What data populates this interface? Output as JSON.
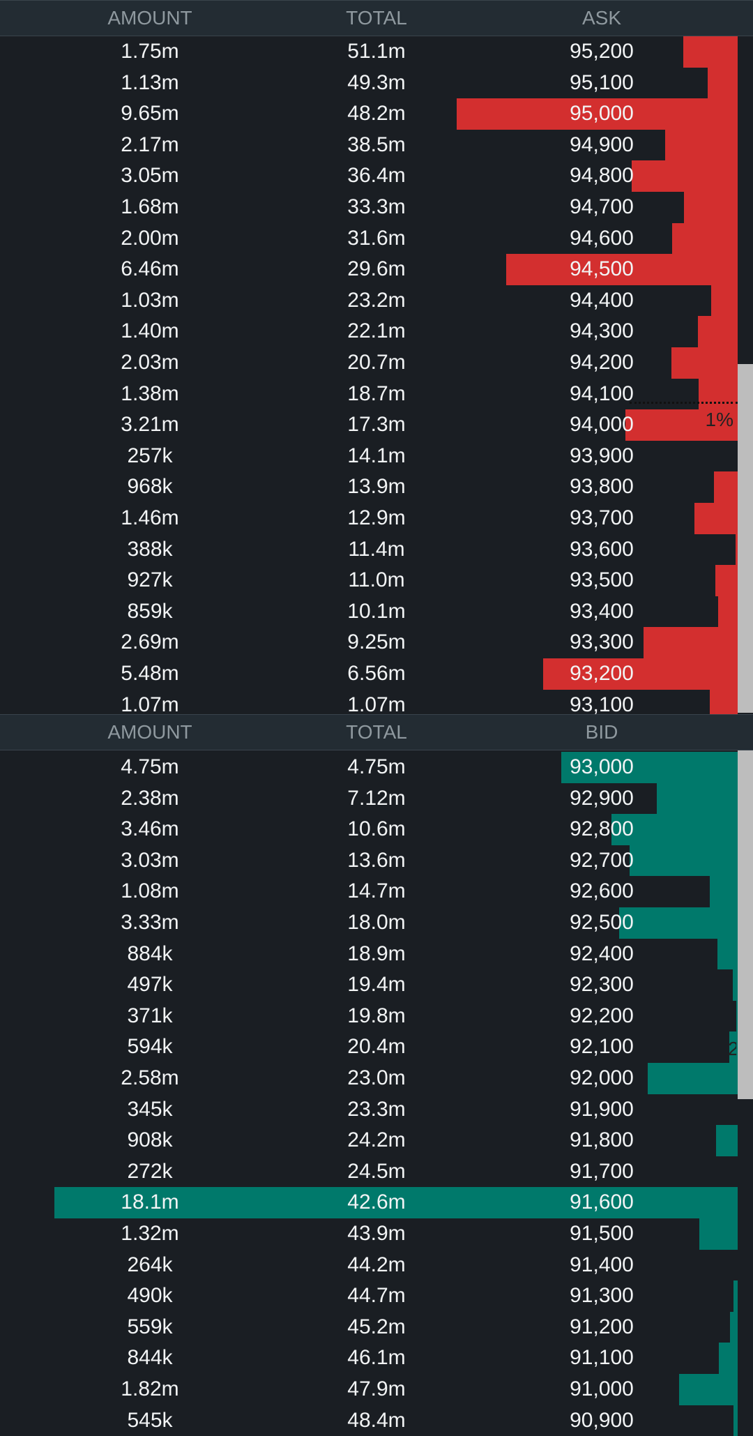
{
  "headers": {
    "ask": {
      "amount": "AMOUNT",
      "total": "TOTAL",
      "price": "ASK"
    },
    "bid": {
      "amount": "AMOUNT",
      "total": "TOTAL",
      "price": "BID"
    }
  },
  "colors": {
    "ask": "#d32f2f",
    "bid": "#00796b"
  },
  "ask_marker": {
    "label": "1%",
    "row_index": 12
  },
  "bid_marker": {
    "label": "2",
    "row_index": 9
  },
  "asks": [
    {
      "amount": "1.75m",
      "total": "51.1m",
      "price": "95,200",
      "size_fraction": 0.075,
      "depth_fraction": 0.015
    },
    {
      "amount": "1.13m",
      "total": "49.3m",
      "price": "95,100",
      "size_fraction": 0.042,
      "depth_fraction": 0.015
    },
    {
      "amount": "9.65m",
      "total": "48.2m",
      "price": "95,000",
      "size_fraction": 0.389,
      "depth_fraction": 0.015
    },
    {
      "amount": "2.17m",
      "total": "38.5m",
      "price": "94,900",
      "size_fraction": 0.1,
      "depth_fraction": 0.015
    },
    {
      "amount": "3.05m",
      "total": "36.4m",
      "price": "94,800",
      "size_fraction": 0.147,
      "depth_fraction": 0.015
    },
    {
      "amount": "1.68m",
      "total": "33.3m",
      "price": "94,700",
      "size_fraction": 0.074,
      "depth_fraction": 0.015
    },
    {
      "amount": "2.00m",
      "total": "31.6m",
      "price": "94,600",
      "size_fraction": 0.091,
      "depth_fraction": 0.015
    },
    {
      "amount": "6.46m",
      "total": "29.6m",
      "price": "94,500",
      "size_fraction": 0.32,
      "depth_fraction": 0.015
    },
    {
      "amount": "1.03m",
      "total": "23.2m",
      "price": "94,400",
      "size_fraction": 0.037,
      "depth_fraction": 0.015
    },
    {
      "amount": "1.40m",
      "total": "22.1m",
      "price": "94,300",
      "size_fraction": 0.055,
      "depth_fraction": 0.015
    },
    {
      "amount": "2.03m",
      "total": "20.7m",
      "price": "94,200",
      "size_fraction": 0.092,
      "depth_fraction": 0.015
    },
    {
      "amount": "1.38m",
      "total": "18.7m",
      "price": "94,100",
      "size_fraction": 0.054,
      "depth_fraction": 0.015
    },
    {
      "amount": "3.21m",
      "total": "17.3m",
      "price": "94,000",
      "size_fraction": 0.155,
      "depth_fraction": 0.015
    },
    {
      "amount": "257k",
      "total": "14.1m",
      "price": "93,900",
      "size_fraction": 0.0,
      "depth_fraction": 0.0
    },
    {
      "amount": "968k",
      "total": "13.9m",
      "price": "93,800",
      "size_fraction": 0.033,
      "depth_fraction": 0.0
    },
    {
      "amount": "1.46m",
      "total": "12.9m",
      "price": "93,700",
      "size_fraction": 0.06,
      "depth_fraction": 0.0
    },
    {
      "amount": "388k",
      "total": "11.4m",
      "price": "93,600",
      "size_fraction": 0.003,
      "depth_fraction": 0.0
    },
    {
      "amount": "927k",
      "total": "11.0m",
      "price": "93,500",
      "size_fraction": 0.031,
      "depth_fraction": 0.0
    },
    {
      "amount": "859k",
      "total": "10.1m",
      "price": "93,400",
      "size_fraction": 0.027,
      "depth_fraction": 0.0
    },
    {
      "amount": "2.69m",
      "total": "9.25m",
      "price": "93,300",
      "size_fraction": 0.13,
      "depth_fraction": 0.0
    },
    {
      "amount": "5.48m",
      "total": "6.56m",
      "price": "93,200",
      "size_fraction": 0.269,
      "depth_fraction": 0.0
    },
    {
      "amount": "1.07m",
      "total": "1.07m",
      "price": "93,100",
      "size_fraction": 0.039,
      "depth_fraction": 0.0
    }
  ],
  "bids": [
    {
      "amount": "4.75m",
      "total": "4.75m",
      "price": "93,000",
      "size_fraction": 0.244,
      "depth_fraction": 0.0
    },
    {
      "amount": "2.38m",
      "total": "7.12m",
      "price": "92,900",
      "size_fraction": 0.112,
      "depth_fraction": 0.0
    },
    {
      "amount": "3.46m",
      "total": "10.6m",
      "price": "92,800",
      "size_fraction": 0.175,
      "depth_fraction": 0.0
    },
    {
      "amount": "3.03m",
      "total": "13.6m",
      "price": "92,700",
      "size_fraction": 0.15,
      "depth_fraction": 0.0
    },
    {
      "amount": "1.08m",
      "total": "14.7m",
      "price": "92,600",
      "size_fraction": 0.039,
      "depth_fraction": 0.0
    },
    {
      "amount": "3.33m",
      "total": "18.0m",
      "price": "92,500",
      "size_fraction": 0.164,
      "depth_fraction": 0.0
    },
    {
      "amount": "884k",
      "total": "18.9m",
      "price": "92,400",
      "size_fraction": 0.028,
      "depth_fraction": 0.0
    },
    {
      "amount": "497k",
      "total": "19.4m",
      "price": "92,300",
      "size_fraction": 0.007,
      "depth_fraction": 0.0
    },
    {
      "amount": "371k",
      "total": "19.8m",
      "price": "92,200",
      "size_fraction": 0.002,
      "depth_fraction": 0.0
    },
    {
      "amount": "594k",
      "total": "20.4m",
      "price": "92,100",
      "size_fraction": 0.012,
      "depth_fraction": 0.0
    },
    {
      "amount": "2.58m",
      "total": "23.0m",
      "price": "92,000",
      "size_fraction": 0.125,
      "depth_fraction": 0.0
    },
    {
      "amount": "345k",
      "total": "23.3m",
      "price": "91,900",
      "size_fraction": 0.0,
      "depth_fraction": 0.0
    },
    {
      "amount": "908k",
      "total": "24.2m",
      "price": "91,800",
      "size_fraction": 0.03,
      "depth_fraction": 0.0
    },
    {
      "amount": "272k",
      "total": "24.5m",
      "price": "91,700",
      "size_fraction": 0.0,
      "depth_fraction": 0.0
    },
    {
      "amount": "18.1m",
      "total": "42.6m",
      "price": "91,600",
      "size_fraction": 0.946,
      "depth_fraction": 0.0
    },
    {
      "amount": "1.32m",
      "total": "43.9m",
      "price": "91,500",
      "size_fraction": 0.053,
      "depth_fraction": 0.0
    },
    {
      "amount": "264k",
      "total": "44.2m",
      "price": "91,400",
      "size_fraction": 0.0,
      "depth_fraction": 0.0
    },
    {
      "amount": "490k",
      "total": "44.7m",
      "price": "91,300",
      "size_fraction": 0.0,
      "depth_fraction": 0.006
    },
    {
      "amount": "559k",
      "total": "45.2m",
      "price": "91,200",
      "size_fraction": 0.0,
      "depth_fraction": 0.011
    },
    {
      "amount": "844k",
      "total": "46.1m",
      "price": "91,100",
      "size_fraction": 0.026,
      "depth_fraction": 0.011
    },
    {
      "amount": "1.82m",
      "total": "47.9m",
      "price": "91,000",
      "size_fraction": 0.081,
      "depth_fraction": 0.006
    },
    {
      "amount": "545k",
      "total": "48.4m",
      "price": "90,900",
      "size_fraction": 0.0,
      "depth_fraction": 0.006
    }
  ]
}
